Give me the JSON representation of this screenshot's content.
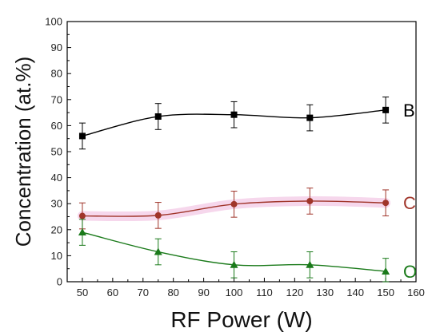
{
  "chart_data": {
    "type": "line",
    "title": "",
    "xlabel": "RF Power (W)",
    "ylabel": "Concentration (at.%)",
    "xlim": [
      45,
      160
    ],
    "ylim": [
      0,
      100
    ],
    "xticks": [
      50,
      60,
      70,
      80,
      90,
      100,
      110,
      120,
      130,
      140,
      150,
      160
    ],
    "yticks": [
      0,
      10,
      20,
      30,
      40,
      50,
      60,
      70,
      80,
      90,
      100
    ],
    "grid": false,
    "legend": "none",
    "x": [
      50,
      75,
      100,
      125,
      150
    ],
    "series": [
      {
        "name": "B",
        "values": [
          56,
          63.5,
          64.2,
          63,
          66
        ],
        "errors": [
          5,
          5,
          5,
          5,
          5
        ],
        "marker": "square",
        "color": "#000000"
      },
      {
        "name": "C",
        "values": [
          25.3,
          25.5,
          29.8,
          31,
          30.3
        ],
        "errors": [
          5,
          5,
          5,
          5,
          5
        ],
        "marker": "circle",
        "color": "#a0352a"
      },
      {
        "name": "O",
        "values": [
          19,
          11.5,
          6.5,
          6.5,
          4
        ],
        "errors": [
          5,
          5,
          5,
          5,
          5
        ],
        "marker": "triangle",
        "color": "#1a7a1a"
      }
    ]
  }
}
